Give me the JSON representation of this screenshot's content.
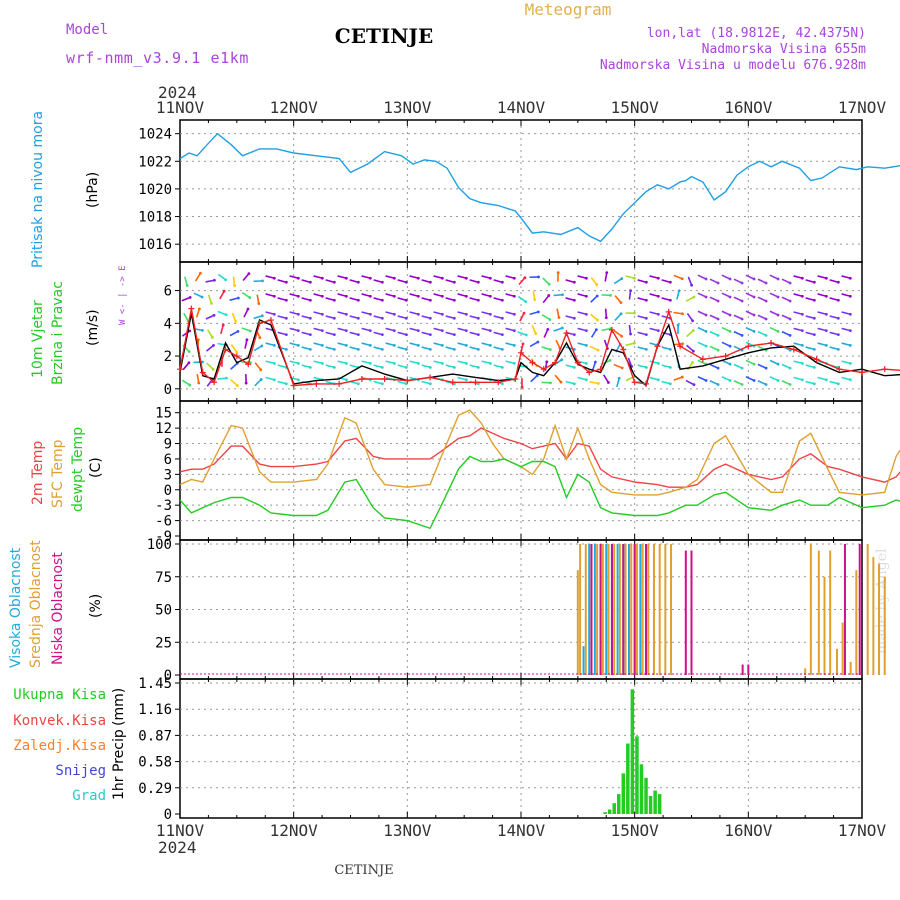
{
  "header": {
    "model_label": "Model",
    "model_name": "wrf-nmm_v3.9.1 e1km",
    "station": "CETINJE",
    "product": "Meteogram",
    "lonlat": "lon,lat (18.9812E, 42.4375N)",
    "elevation": "Nadmorska Visina 655m",
    "model_elevation": "Nadmorska Visina u modelu 676.928m",
    "year_top": "2024",
    "year_bottom": "2024",
    "footer_station": "CETINJE",
    "credit": "made by Angel"
  },
  "colors": {
    "pressure": "#1e9fe6",
    "temp2m": "#ee4444",
    "sfc": "#e0a030",
    "dewpt": "#22cc22",
    "high_cloud": "#22aadd",
    "mid_cloud": "#e0a030",
    "low_cloud": "#cc1188",
    "total_rain": "#22cc22",
    "conv_rain": "#ee4444",
    "frz_rain": "#ff7f2a",
    "snow": "#4444dd",
    "hail": "#22cccc",
    "purple_text": "#aa44dd",
    "gold_text": "#e0b050"
  },
  "chart_data": [
    {
      "type": "line",
      "panel": "pressure",
      "ylabel_main": "Pritisak na nivou mora",
      "ylabel_unit": "(hPa)",
      "ylim": [
        1015,
        1024.7
      ],
      "yticks": [
        "1024",
        "1022",
        "1020",
        "1018",
        "1016"
      ],
      "ytick_values": [
        1024,
        1022,
        1020,
        1018,
        1016
      ],
      "grid": true,
      "series": [
        {
          "color_key": "pressure",
          "x": [
            0,
            0.08,
            0.15,
            0.25,
            0.33,
            0.45,
            0.55,
            0.7,
            0.85,
            1,
            1.2,
            1.4,
            1.5,
            1.65,
            1.8,
            1.95,
            2.05,
            2.15,
            2.25,
            2.35,
            2.45,
            2.55,
            2.65,
            2.8,
            2.95,
            3,
            3.1,
            3.2,
            3.35,
            3.5,
            3.6,
            3.7,
            3.8,
            3.9,
            4,
            4.1,
            4.2,
            4.3,
            4.4,
            4.45,
            4.5,
            4.6,
            4.7,
            4.8,
            4.9,
            5,
            5.1,
            5.2,
            5.3,
            5.45,
            5.55,
            5.65,
            5.8,
            5.95,
            6.05,
            6.2,
            6.35,
            6.45,
            6.55,
            6.7,
            6.85,
            7
          ],
          "y": [
            1022.2,
            1022.6,
            1022.4,
            1023.3,
            1024.0,
            1023.2,
            1022.4,
            1022.9,
            1022.9,
            1022.6,
            1022.4,
            1022.2,
            1021.2,
            1021.8,
            1022.7,
            1022.4,
            1021.8,
            1022.1,
            1022.0,
            1021.5,
            1020.1,
            1019.3,
            1019.0,
            1018.8,
            1018.4,
            1017.9,
            1016.8,
            1016.9,
            1016.7,
            1017.2,
            1016.6,
            1016.2,
            1017.1,
            1018.2,
            1019.0,
            1019.8,
            1020.3,
            1020.0,
            1020.5,
            1020.6,
            1020.9,
            1020.5,
            1019.2,
            1019.8,
            1021.0,
            1021.6,
            1022.0,
            1021.6,
            1022.0,
            1021.5,
            1020.6,
            1020.8,
            1021.6,
            1021.4,
            1021.6,
            1021.5,
            1021.7,
            1021.6,
            1021.5,
            1021.6,
            1021.5,
            1021.6
          ]
        }
      ]
    },
    {
      "type": "line",
      "panel": "wind",
      "ylabel_main": "10m Vjetar",
      "ylabel_sub": "Brzina i Pravac",
      "ylabel_unit": "(m/s)",
      "compass": "W <- | -> E",
      "ylim": [
        -0.5,
        7.5
      ],
      "yticks": [
        "6",
        "4",
        "2",
        "0"
      ],
      "ytick_values": [
        6,
        4,
        2,
        0
      ],
      "grid": true,
      "series": [
        {
          "name": "speed",
          "color": "#000000",
          "x": [
            0,
            0.1,
            0.2,
            0.3,
            0.4,
            0.5,
            0.6,
            0.7,
            0.8,
            1,
            1.2,
            1.4,
            1.6,
            1.8,
            2,
            2.2,
            2.4,
            2.6,
            2.8,
            2.95,
            3,
            3.1,
            3.2,
            3.3,
            3.4,
            3.5,
            3.6,
            3.7,
            3.8,
            3.9,
            4,
            4.1,
            4.2,
            4.3,
            4.4,
            4.6,
            4.8,
            5,
            5.2,
            5.4,
            5.6,
            5.8,
            6,
            6.2,
            6.4,
            6.6,
            6.8,
            7
          ],
          "y": [
            1.0,
            4.6,
            0.8,
            0.6,
            2.8,
            1.6,
            1.9,
            4.2,
            3.9,
            0.3,
            0.5,
            0.6,
            1.4,
            0.9,
            0.5,
            0.7,
            0.9,
            0.7,
            0.5,
            0.6,
            1.6,
            1.0,
            0.8,
            1.6,
            2.8,
            1.5,
            1.2,
            1.0,
            2.4,
            2.2,
            0.8,
            0.2,
            2.6,
            3.9,
            1.2,
            1.4,
            1.8,
            2.2,
            2.5,
            2.6,
            1.6,
            1.0,
            1.2,
            0.8,
            0.9,
            1.0,
            1.6,
            1.0
          ]
        },
        {
          "name": "gust",
          "color": "#ee2222",
          "x": [
            0,
            0.1,
            0.2,
            0.3,
            0.4,
            0.5,
            0.6,
            0.7,
            0.8,
            1,
            1.2,
            1.4,
            1.6,
            1.8,
            2,
            2.2,
            2.4,
            2.6,
            2.8,
            2.95,
            3,
            3.1,
            3.2,
            3.3,
            3.4,
            3.5,
            3.6,
            3.7,
            3.8,
            3.9,
            4,
            4.1,
            4.2,
            4.3,
            4.4,
            4.6,
            4.8,
            5,
            5.2,
            5.4,
            5.6,
            5.8,
            6,
            6.2,
            6.4,
            6.6,
            6.8,
            7
          ],
          "y": [
            1.2,
            4.9,
            1.0,
            0.4,
            2.4,
            2.0,
            1.5,
            4.0,
            4.2,
            0.2,
            0.3,
            0.3,
            0.6,
            0.6,
            0.5,
            0.7,
            0.4,
            0.4,
            0.4,
            0.6,
            2.2,
            1.6,
            1.2,
            1.6,
            3.4,
            1.6,
            1.0,
            1.2,
            3.6,
            2.4,
            0.4,
            0.3,
            2.6,
            4.7,
            2.6,
            1.8,
            2.0,
            2.6,
            2.8,
            2.4,
            1.8,
            1.2,
            1.0,
            1.2,
            1.1,
            1.0,
            3.2,
            0.8
          ]
        }
      ]
    },
    {
      "type": "line",
      "panel": "temperature",
      "ylabel_a": "2m Temp",
      "ylabel_b": "SFC Temp",
      "ylabel_c": "dewpt Temp",
      "ylabel_unit": "(C)",
      "ylim": [
        -9,
        16.5
      ],
      "yticks": [
        "15",
        "12",
        "9",
        "6",
        "3",
        "0",
        "-3",
        "-6",
        "-9"
      ],
      "ytick_values": [
        15,
        12,
        9,
        6,
        3,
        0,
        -3,
        -6,
        -9
      ],
      "grid": true,
      "series": [
        {
          "name": "2m Temp",
          "color_key": "temp2m",
          "x": [
            0,
            0.1,
            0.2,
            0.3,
            0.45,
            0.55,
            0.7,
            0.8,
            1,
            1.2,
            1.3,
            1.45,
            1.55,
            1.7,
            1.8,
            2,
            2.2,
            2.3,
            2.45,
            2.55,
            2.65,
            2.75,
            2.85,
            3,
            3.1,
            3.2,
            3.3,
            3.4,
            3.5,
            3.6,
            3.7,
            3.8,
            4,
            4.2,
            4.3,
            4.45,
            4.55,
            4.7,
            4.8,
            5,
            5.2,
            5.3,
            5.45,
            5.55,
            5.7,
            5.8,
            6,
            6.2,
            6.3,
            6.45,
            6.55,
            6.7,
            6.8,
            7
          ],
          "y": [
            3.5,
            4.0,
            4.0,
            5.0,
            8.5,
            8.5,
            5.0,
            4.5,
            4.5,
            5.0,
            5.5,
            9.5,
            10.0,
            6.5,
            6.0,
            6.0,
            6.0,
            7.5,
            10.0,
            10.5,
            12.0,
            11.0,
            10.0,
            9.0,
            8.0,
            8.5,
            9.0,
            6.0,
            9.0,
            8.5,
            4.0,
            2.5,
            1.5,
            1.0,
            0.5,
            0.5,
            1.0,
            4.0,
            5.0,
            3.0,
            2.0,
            2.5,
            6.0,
            7.0,
            4.5,
            4.0,
            2.5,
            1.5,
            2.5,
            6.5,
            7.0,
            4.0,
            3.5,
            3.5
          ]
        },
        {
          "name": "SFC Temp",
          "color_key": "sfc",
          "x": [
            0,
            0.1,
            0.2,
            0.3,
            0.45,
            0.55,
            0.7,
            0.8,
            1,
            1.2,
            1.3,
            1.45,
            1.55,
            1.7,
            1.8,
            2,
            2.2,
            2.3,
            2.45,
            2.55,
            2.65,
            2.75,
            2.85,
            3,
            3.1,
            3.2,
            3.3,
            3.4,
            3.5,
            3.6,
            3.7,
            3.8,
            4,
            4.2,
            4.3,
            4.45,
            4.55,
            4.7,
            4.8,
            5,
            5.2,
            5.3,
            5.45,
            5.55,
            5.7,
            5.8,
            6,
            6.2,
            6.3,
            6.45,
            6.55,
            6.7,
            6.8,
            7
          ],
          "y": [
            1.0,
            2.0,
            1.5,
            6.0,
            12.5,
            12.0,
            3.5,
            1.5,
            1.5,
            2.0,
            5.0,
            14.0,
            13.0,
            4.0,
            1.0,
            0.5,
            1.0,
            6.5,
            14.5,
            15.5,
            13.0,
            9.0,
            6.0,
            4.5,
            3.0,
            6.0,
            12.5,
            6.0,
            12.0,
            6.0,
            1.0,
            -0.5,
            -1.0,
            -1.0,
            -0.5,
            0.5,
            2.0,
            9.0,
            10.5,
            3.0,
            -0.5,
            -0.5,
            9.5,
            11.0,
            4.0,
            -0.5,
            -1.0,
            -0.5,
            6.5,
            11.5,
            9.0,
            -0.5,
            -1.5,
            -1.5
          ]
        },
        {
          "name": "dewpt Temp",
          "color_key": "dewpt",
          "x": [
            0,
            0.1,
            0.2,
            0.3,
            0.45,
            0.55,
            0.7,
            0.8,
            1,
            1.2,
            1.3,
            1.45,
            1.55,
            1.7,
            1.8,
            2,
            2.2,
            2.3,
            2.45,
            2.55,
            2.65,
            2.75,
            2.85,
            3,
            3.1,
            3.2,
            3.3,
            3.4,
            3.5,
            3.6,
            3.7,
            3.8,
            4,
            4.2,
            4.3,
            4.45,
            4.55,
            4.7,
            4.8,
            5,
            5.2,
            5.3,
            5.45,
            5.55,
            5.7,
            5.8,
            6,
            6.2,
            6.3,
            6.45,
            6.55,
            6.7,
            6.8,
            7
          ],
          "y": [
            -2.0,
            -4.5,
            -3.5,
            -2.5,
            -1.5,
            -1.5,
            -3.0,
            -4.5,
            -5.0,
            -5.0,
            -4.0,
            1.5,
            2.0,
            -3.5,
            -5.5,
            -6.0,
            -7.5,
            -3.0,
            4.0,
            6.5,
            5.5,
            5.5,
            6.0,
            4.5,
            5.5,
            5.5,
            4.5,
            -1.5,
            3.0,
            1.5,
            -3.5,
            -4.5,
            -5.0,
            -5.0,
            -4.5,
            -3.0,
            -3.0,
            -1.0,
            -0.5,
            -3.5,
            -4.0,
            -3.0,
            -2.0,
            -3.0,
            -3.0,
            -1.5,
            -3.5,
            -3.0,
            -2.0,
            -3.0,
            -4.0,
            -3.0,
            -3.5,
            -5.0
          ]
        }
      ]
    },
    {
      "type": "bar",
      "panel": "cloud",
      "ylabel_a": "Visoka Oblacnost",
      "ylabel_b": "Srednja Oblacnost",
      "ylabel_c": "Niska Oblacnost",
      "ylabel_unit": "(%)",
      "ylim": [
        0,
        100
      ],
      "yticks": [
        "100",
        "75",
        "50",
        "25",
        "0"
      ],
      "ytick_values": [
        100,
        75,
        50,
        25,
        0
      ],
      "grid": true,
      "series": [
        {
          "name": "Visoka Oblacnost",
          "color_key": "high_cloud",
          "x": [
            3.55,
            3.6,
            3.65,
            3.7,
            3.75,
            3.8,
            3.85,
            3.9,
            3.95,
            4.0,
            4.05
          ],
          "y": [
            22,
            100,
            100,
            100,
            100,
            100,
            100,
            100,
            100,
            100,
            100
          ]
        },
        {
          "name": "Srednja Oblacnost",
          "color_key": "mid_cloud",
          "x": [
            3.5,
            3.52,
            3.57,
            3.62,
            3.67,
            3.72,
            3.77,
            3.82,
            3.87,
            3.92,
            3.97,
            4.02,
            4.07,
            4.12,
            4.17,
            4.22,
            4.27,
            4.32,
            5.5,
            5.55,
            5.62,
            5.67,
            5.72,
            5.78,
            5.83,
            5.9,
            5.95,
            6.05,
            6.1,
            6.15,
            6.2
          ],
          "y": [
            80,
            100,
            100,
            100,
            100,
            100,
            100,
            100,
            100,
            100,
            100,
            100,
            100,
            100,
            100,
            100,
            100,
            100,
            5,
            100,
            95,
            75,
            95,
            20,
            40,
            10,
            80,
            100,
            90,
            85,
            75
          ]
        },
        {
          "name": "Niska Oblacnost",
          "color_key": "low_cloud",
          "x": [
            3.62,
            3.7,
            3.8,
            3.9,
            4.0,
            4.1,
            4.45,
            4.5,
            4.95,
            5.0,
            5.85,
            5.98
          ],
          "y": [
            100,
            100,
            100,
            100,
            100,
            100,
            95,
            95,
            8,
            8,
            100,
            100
          ]
        }
      ]
    },
    {
      "type": "bar",
      "panel": "precip",
      "ylabel_main": "1hr Precip",
      "ylabel_unit": "(mm)",
      "legend": [
        "Ukupna Kisa",
        "Konvek.Kisa",
        "Zaledj.Kisa",
        "Snijeg",
        "Grad"
      ],
      "ylim": [
        0,
        1.45
      ],
      "yticks": [
        "1.45",
        "1.16",
        "0.87",
        "0.58",
        "0.29",
        "0"
      ],
      "ytick_values": [
        1.45,
        1.16,
        0.87,
        0.58,
        0.29,
        0
      ],
      "grid": true,
      "series": [
        {
          "name": "Ukupna Kisa",
          "color_key": "total_rain",
          "x": [
            3.74,
            3.78,
            3.82,
            3.86,
            3.9,
            3.94,
            3.98,
            4.02,
            4.06,
            4.1,
            4.14,
            4.18,
            4.22
          ],
          "y": [
            0.02,
            0.05,
            0.12,
            0.22,
            0.45,
            0.78,
            1.38,
            0.86,
            0.55,
            0.4,
            0.2,
            0.26,
            0.22
          ]
        }
      ]
    }
  ],
  "x_axis": {
    "days": [
      "11NOV",
      "12NOV",
      "13NOV",
      "14NOV",
      "15NOV",
      "16NOV",
      "17NOV"
    ],
    "day_values": [
      0,
      1,
      2,
      3,
      4,
      5,
      6
    ]
  }
}
